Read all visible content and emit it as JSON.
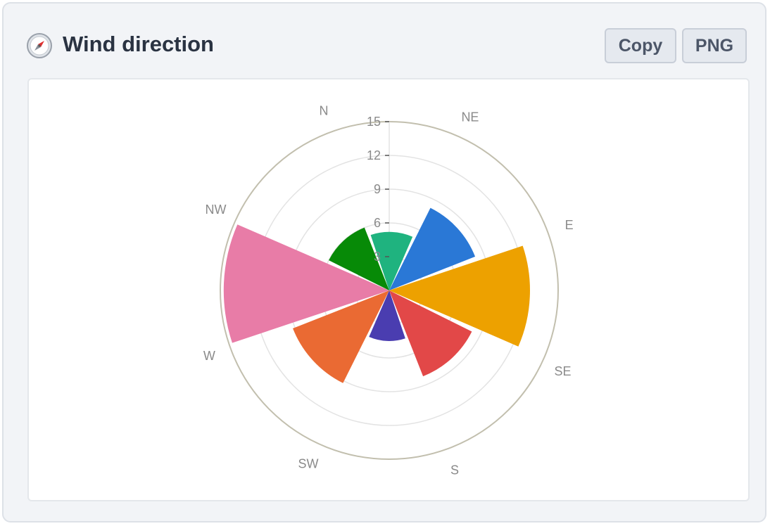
{
  "header": {
    "title": "Wind direction",
    "icon": "compass-icon",
    "copy_label": "Copy",
    "png_label": "PNG"
  },
  "chart_data": {
    "type": "polar-bar",
    "title": "Wind direction",
    "categories": [
      "N",
      "NE",
      "E",
      "SE",
      "S",
      "SW",
      "W",
      "NW"
    ],
    "values": [
      5.2,
      8.2,
      12.5,
      8.2,
      4.5,
      9.2,
      14.7,
      6.0
    ],
    "colors": [
      "#1fb37f",
      "#2a78d6",
      "#eda100",
      "#e24848",
      "#4a3db0",
      "#ea6a33",
      "#e87ca7",
      "#078a07"
    ],
    "radial_ticks": [
      3,
      6,
      9,
      12,
      15
    ],
    "rmax": 15,
    "direction_labels": [
      "N",
      "NE",
      "E",
      "SE",
      "S",
      "SW",
      "W",
      "NW"
    ],
    "grid": true,
    "legend": "none"
  }
}
